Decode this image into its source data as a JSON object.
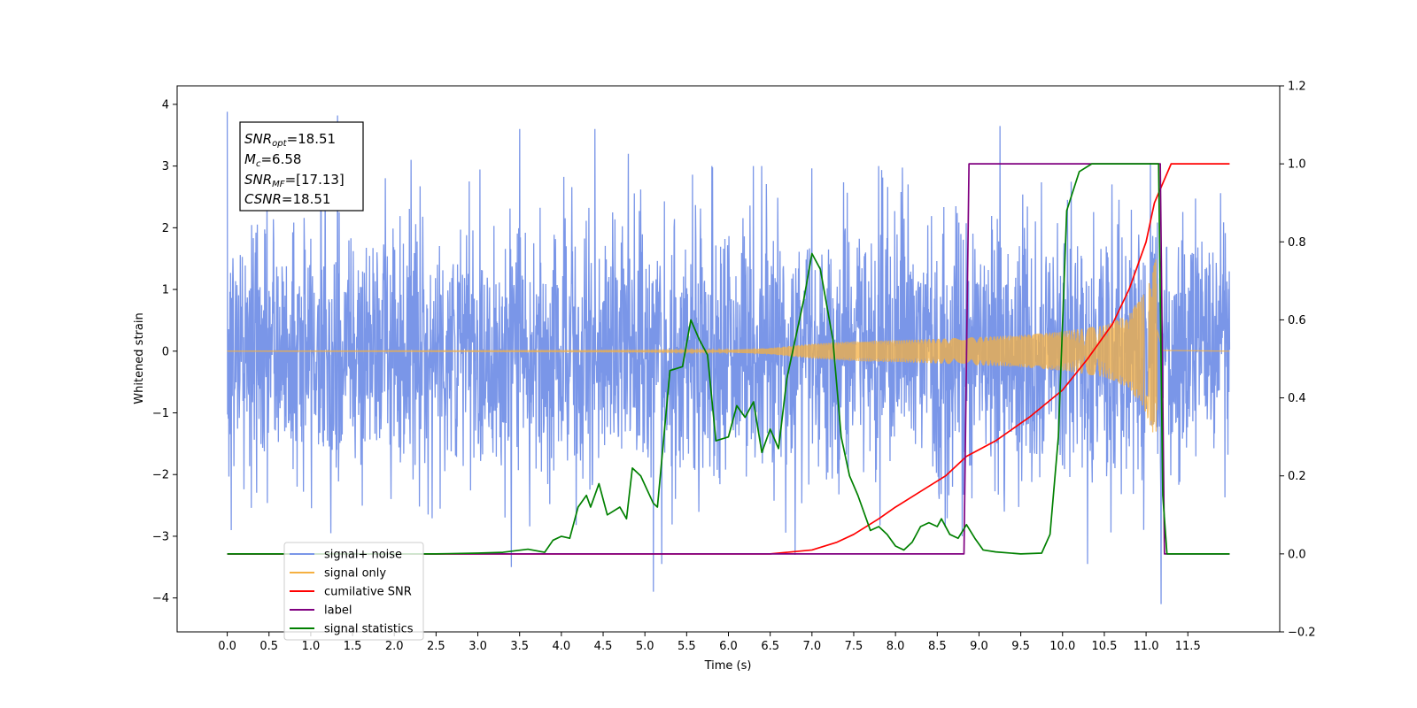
{
  "chart_data": {
    "type": "line",
    "xlabel": "Time (s)",
    "ylabel": "Whitened strain",
    "xlim": [
      -0.6,
      12.6
    ],
    "ylim": [
      -4.55,
      4.3
    ],
    "ylim_right": [
      -0.2,
      1.2
    ],
    "xticks": [
      "0.0",
      "0.5",
      "1.0",
      "1.5",
      "2.0",
      "2.5",
      "3.0",
      "3.5",
      "4.0",
      "4.5",
      "5.0",
      "5.5",
      "6.0",
      "6.5",
      "7.0",
      "7.5",
      "8.0",
      "8.5",
      "9.0",
      "9.5",
      "10.0",
      "10.5",
      "11.0",
      "11.5"
    ],
    "yticks_left": [
      "4",
      "3",
      "2",
      "1",
      "0",
      "−1",
      "−2",
      "−3",
      "−4"
    ],
    "yticks_right": [
      "1.2",
      "1.0",
      "0.8",
      "0.6",
      "0.4",
      "0.2",
      "0.0",
      "−0.2"
    ],
    "grid": false,
    "legend_position": "lower-left",
    "annotation": {
      "snr_opt": {
        "label": "SNR",
        "sub": "opt",
        "value": "=18.51"
      },
      "mc": {
        "label": "M",
        "sub": "c",
        "value": "=6.58"
      },
      "snr_mf": {
        "label": "SNR",
        "sub": "MF",
        "value": "=[17.13]"
      },
      "csnr": {
        "label": "CSNR",
        "value": "=18.51"
      }
    },
    "series": [
      {
        "name": "signal+ noise",
        "axis": "left",
        "color": "#7a96e8",
        "kind": "noise",
        "x_range": [
          0,
          12
        ],
        "noise_std": 1.05,
        "spikes": [
          [
            0.0,
            3.88
          ],
          [
            0.05,
            -2.9
          ],
          [
            1.32,
            3.82
          ],
          [
            1.24,
            -2.95
          ],
          [
            2.2,
            3.1
          ],
          [
            3.5,
            3.6
          ],
          [
            4.4,
            3.6
          ],
          [
            5.1,
            -3.9
          ],
          [
            5.2,
            -3.45
          ],
          [
            4.8,
            3.2
          ],
          [
            5.8,
            3.0
          ],
          [
            6.3,
            3.0
          ],
          [
            6.4,
            3.0
          ],
          [
            6.8,
            -3.3
          ],
          [
            7.8,
            3.0
          ],
          [
            8.8,
            -3.0
          ],
          [
            9.25,
            3.65
          ],
          [
            10.3,
            -3.45
          ],
          [
            11.18,
            -4.1
          ],
          [
            11.05,
            3.05
          ],
          [
            3.4,
            -3.5
          ]
        ]
      },
      {
        "name": "signal only",
        "axis": "left",
        "color": "#f5b041",
        "kind": "chirp",
        "x_range": [
          0,
          12
        ],
        "merger_time": 11.13,
        "amplitude_envelope": [
          [
            0.0,
            0.002
          ],
          [
            5.0,
            0.01
          ],
          [
            6.0,
            0.02
          ],
          [
            6.5,
            0.05
          ],
          [
            7.0,
            0.12
          ],
          [
            7.5,
            0.16
          ],
          [
            8.0,
            0.18
          ],
          [
            8.5,
            0.2
          ],
          [
            9.0,
            0.23
          ],
          [
            9.5,
            0.26
          ],
          [
            10.0,
            0.32
          ],
          [
            10.5,
            0.42
          ],
          [
            10.8,
            0.6
          ],
          [
            11.0,
            1.0
          ],
          [
            11.13,
            1.55
          ],
          [
            11.2,
            0.05
          ],
          [
            12.0,
            0.0
          ]
        ]
      },
      {
        "name": "cumilative SNR",
        "axis": "right",
        "color": "#ff0000",
        "kind": "line",
        "points": [
          [
            0.0,
            0.0
          ],
          [
            6.5,
            0.0
          ],
          [
            7.0,
            0.01
          ],
          [
            7.3,
            0.03
          ],
          [
            7.5,
            0.05
          ],
          [
            7.8,
            0.09
          ],
          [
            8.0,
            0.12
          ],
          [
            8.3,
            0.16
          ],
          [
            8.6,
            0.2
          ],
          [
            8.85,
            0.25
          ],
          [
            9.2,
            0.29
          ],
          [
            9.6,
            0.35
          ],
          [
            10.0,
            0.42
          ],
          [
            10.3,
            0.5
          ],
          [
            10.6,
            0.59
          ],
          [
            10.8,
            0.68
          ],
          [
            11.0,
            0.8
          ],
          [
            11.1,
            0.9
          ],
          [
            11.3,
            1.0
          ],
          [
            12.0,
            1.0
          ]
        ]
      },
      {
        "name": "label",
        "axis": "right",
        "color": "#800080",
        "kind": "line",
        "points": [
          [
            0.0,
            0.0
          ],
          [
            8.82,
            0.0
          ],
          [
            8.88,
            1.0
          ],
          [
            11.17,
            1.0
          ],
          [
            11.22,
            0.0
          ],
          [
            12.0,
            0.0
          ]
        ]
      },
      {
        "name": "signal statistics",
        "axis": "right",
        "color": "#008000",
        "kind": "line",
        "points": [
          [
            0.0,
            0.0
          ],
          [
            2.5,
            0.0
          ],
          [
            3.0,
            0.002
          ],
          [
            3.3,
            0.004
          ],
          [
            3.6,
            0.012
          ],
          [
            3.8,
            0.004
          ],
          [
            3.9,
            0.035
          ],
          [
            4.0,
            0.045
          ],
          [
            4.1,
            0.04
          ],
          [
            4.2,
            0.12
          ],
          [
            4.3,
            0.15
          ],
          [
            4.35,
            0.12
          ],
          [
            4.45,
            0.18
          ],
          [
            4.55,
            0.1
          ],
          [
            4.7,
            0.12
          ],
          [
            4.78,
            0.09
          ],
          [
            4.85,
            0.22
          ],
          [
            4.95,
            0.2
          ],
          [
            5.1,
            0.13
          ],
          [
            5.15,
            0.12
          ],
          [
            5.3,
            0.47
          ],
          [
            5.45,
            0.48
          ],
          [
            5.55,
            0.6
          ],
          [
            5.65,
            0.55
          ],
          [
            5.75,
            0.51
          ],
          [
            5.85,
            0.29
          ],
          [
            6.0,
            0.3
          ],
          [
            6.1,
            0.38
          ],
          [
            6.2,
            0.35
          ],
          [
            6.3,
            0.39
          ],
          [
            6.4,
            0.26
          ],
          [
            6.5,
            0.32
          ],
          [
            6.6,
            0.27
          ],
          [
            6.7,
            0.45
          ],
          [
            6.9,
            0.65
          ],
          [
            7.0,
            0.77
          ],
          [
            7.1,
            0.73
          ],
          [
            7.25,
            0.55
          ],
          [
            7.35,
            0.3
          ],
          [
            7.45,
            0.2
          ],
          [
            7.55,
            0.15
          ],
          [
            7.7,
            0.06
          ],
          [
            7.8,
            0.07
          ],
          [
            7.9,
            0.05
          ],
          [
            8.0,
            0.02
          ],
          [
            8.1,
            0.01
          ],
          [
            8.2,
            0.03
          ],
          [
            8.3,
            0.07
          ],
          [
            8.4,
            0.08
          ],
          [
            8.5,
            0.07
          ],
          [
            8.55,
            0.09
          ],
          [
            8.65,
            0.05
          ],
          [
            8.75,
            0.04
          ],
          [
            8.85,
            0.075
          ],
          [
            8.95,
            0.04
          ],
          [
            9.05,
            0.01
          ],
          [
            9.2,
            0.005
          ],
          [
            9.5,
            0.0
          ],
          [
            9.75,
            0.002
          ],
          [
            9.85,
            0.05
          ],
          [
            9.95,
            0.3
          ],
          [
            10.05,
            0.88
          ],
          [
            10.2,
            0.98
          ],
          [
            10.35,
            1.0
          ],
          [
            11.15,
            1.0
          ],
          [
            11.2,
            0.15
          ],
          [
            11.25,
            0.0
          ],
          [
            12.0,
            0.0
          ]
        ]
      }
    ]
  }
}
